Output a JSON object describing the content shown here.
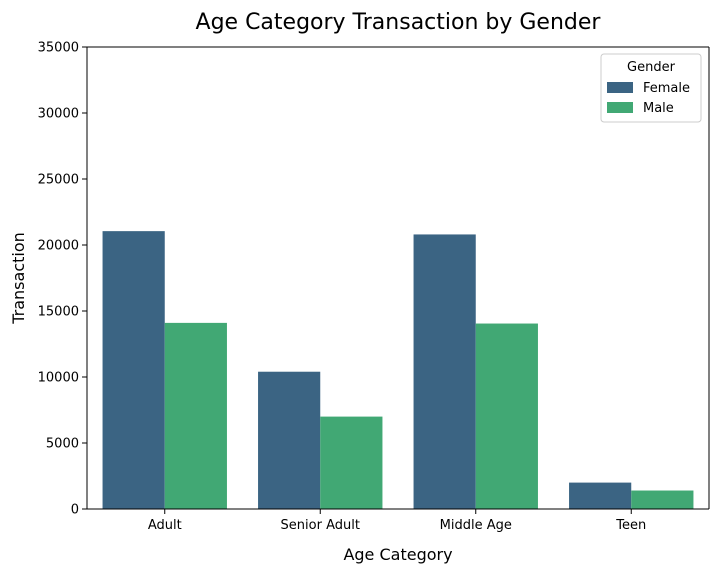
{
  "chart_data": {
    "type": "bar",
    "title": "Age Category Transaction by Gender",
    "xlabel": "Age Category",
    "ylabel": "Transaction",
    "categories": [
      "Adult",
      "Senior Adult",
      "Middle Age",
      "Teen"
    ],
    "series": [
      {
        "name": "Female",
        "values": [
          21050,
          10400,
          20800,
          2000
        ],
        "color": "#3b6483"
      },
      {
        "name": "Male",
        "values": [
          14100,
          7000,
          14050,
          1400
        ],
        "color": "#41a874"
      }
    ],
    "ylim": [
      0,
      35000
    ],
    "yticks": [
      0,
      5000,
      10000,
      15000,
      20000,
      25000,
      30000,
      35000
    ],
    "grid": false,
    "legend": {
      "title": "Gender",
      "position": "top-right"
    }
  }
}
